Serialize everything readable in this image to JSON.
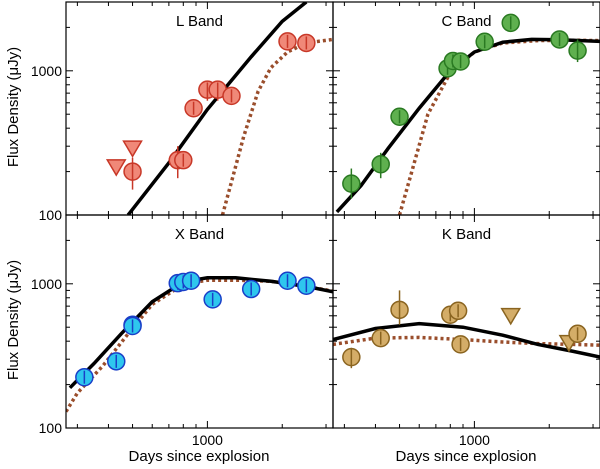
{
  "chart_data": {
    "type": "scatter",
    "xlabel": "Days since explosion",
    "ylabel": "Flux Density (μJy)",
    "xscale": "log",
    "yscale": "log",
    "xlim": [
      270,
      3200
    ],
    "x_ticks": [
      {
        "value": 1000,
        "label": "1000"
      }
    ],
    "colors": {
      "model_solid": "#000000",
      "model_dotted": "#9a4e2c"
    },
    "panels": [
      {
        "title": "L Band",
        "ylim": [
          100,
          3000
        ],
        "y_ticks": [
          {
            "value": 100,
            "label": "100"
          },
          {
            "value": 1000,
            "label": "1000"
          }
        ],
        "marker_fill": "#f08878",
        "marker_edge": "#c83828",
        "points": [
          {
            "x": 500,
            "y": 200,
            "err": [
              150,
              250
            ]
          },
          {
            "x": 760,
            "y": 240,
            "err": [
              180,
              300
            ]
          },
          {
            "x": 800,
            "y": 240
          },
          {
            "x": 880,
            "y": 550
          },
          {
            "x": 1000,
            "y": 740,
            "err": [
              620,
              830
            ]
          },
          {
            "x": 1100,
            "y": 740,
            "err": [
              620,
              830
            ]
          },
          {
            "x": 1250,
            "y": 670
          },
          {
            "x": 2100,
            "y": 1600
          },
          {
            "x": 2500,
            "y": 1560
          }
        ],
        "upper_limits": [
          {
            "x": 430,
            "y": 215
          },
          {
            "x": 500,
            "y": 290
          }
        ],
        "model_solid": [
          [
            480,
            100
          ],
          [
            700,
            230
          ],
          [
            1000,
            540
          ],
          [
            1500,
            1250
          ],
          [
            2000,
            2200
          ],
          [
            2500,
            3000
          ]
        ],
        "model_dotted": [
          [
            1150,
            100
          ],
          [
            1250,
            170
          ],
          [
            1400,
            350
          ],
          [
            1600,
            720
          ],
          [
            1800,
            1050
          ],
          [
            2100,
            1350
          ],
          [
            2500,
            1560
          ],
          [
            3200,
            1650
          ]
        ]
      },
      {
        "title": "C Band",
        "ylim": [
          100,
          3000
        ],
        "y_ticks": [],
        "marker_fill": "#5fb04f",
        "marker_edge": "#2a7a22",
        "points": [
          {
            "x": 320,
            "y": 165,
            "err": [
              130,
              210
            ]
          },
          {
            "x": 420,
            "y": 225,
            "err": [
              180,
              270
            ]
          },
          {
            "x": 500,
            "y": 480
          },
          {
            "x": 780,
            "y": 1040
          },
          {
            "x": 820,
            "y": 1170
          },
          {
            "x": 880,
            "y": 1160
          },
          {
            "x": 1100,
            "y": 1590
          },
          {
            "x": 1400,
            "y": 2150
          },
          {
            "x": 2200,
            "y": 1650
          },
          {
            "x": 2600,
            "y": 1380,
            "err": [
              1150,
              1650
            ]
          }
        ],
        "upper_limits": [],
        "model_solid": [
          [
            280,
            105
          ],
          [
            350,
            160
          ],
          [
            450,
            290
          ],
          [
            600,
            550
          ],
          [
            800,
            1000
          ],
          [
            1000,
            1350
          ],
          [
            1300,
            1580
          ],
          [
            1700,
            1650
          ],
          [
            2200,
            1640
          ],
          [
            3200,
            1600
          ]
        ],
        "model_dotted": [
          [
            500,
            100
          ],
          [
            560,
            200
          ],
          [
            650,
            500
          ],
          [
            800,
            970
          ],
          [
            1000,
            1350
          ],
          [
            1300,
            1560
          ],
          [
            1800,
            1620
          ],
          [
            2500,
            1630
          ],
          [
            3200,
            1620
          ]
        ]
      },
      {
        "title": "X Band",
        "ylim": [
          100,
          3000
        ],
        "y_ticks": [
          {
            "value": 100,
            "label": "100"
          },
          {
            "value": 1000,
            "label": "1000"
          }
        ],
        "marker_fill": "#2ec6ee",
        "marker_edge": "#1a3fc8",
        "points": [
          {
            "x": 320,
            "y": 225
          },
          {
            "x": 430,
            "y": 290
          },
          {
            "x": 500,
            "y": 520
          },
          {
            "x": 500,
            "y": 510
          },
          {
            "x": 760,
            "y": 1010
          },
          {
            "x": 800,
            "y": 1030
          },
          {
            "x": 860,
            "y": 1050
          },
          {
            "x": 1050,
            "y": 780
          },
          {
            "x": 1500,
            "y": 920
          },
          {
            "x": 2100,
            "y": 1050
          },
          {
            "x": 2500,
            "y": 970
          }
        ],
        "upper_limits": [],
        "model_solid": [
          [
            280,
            190
          ],
          [
            350,
            280
          ],
          [
            450,
            450
          ],
          [
            600,
            750
          ],
          [
            800,
            1030
          ],
          [
            1000,
            1100
          ],
          [
            1300,
            1100
          ],
          [
            1800,
            1040
          ],
          [
            2500,
            960
          ],
          [
            3200,
            880
          ]
        ],
        "model_dotted": [
          [
            270,
            130
          ],
          [
            300,
            175
          ],
          [
            380,
            270
          ],
          [
            480,
            450
          ],
          [
            600,
            720
          ],
          [
            800,
            990
          ],
          [
            1000,
            1060
          ],
          [
            1300,
            1060
          ],
          [
            1800,
            1040
          ],
          [
            2500,
            960
          ],
          [
            3200,
            890
          ]
        ]
      },
      {
        "title": "K Band",
        "ylim": [
          100,
          3000
        ],
        "y_ticks": [],
        "marker_fill": "#d4ad68",
        "marker_edge": "#8a6420",
        "points": [
          {
            "x": 320,
            "y": 310,
            "err": [
              260,
              360
            ]
          },
          {
            "x": 420,
            "y": 420
          },
          {
            "x": 500,
            "y": 660,
            "err": [
              520,
              900
            ]
          },
          {
            "x": 800,
            "y": 610
          },
          {
            "x": 860,
            "y": 650
          },
          {
            "x": 880,
            "y": 380
          },
          {
            "x": 2600,
            "y": 450
          }
        ],
        "upper_limits": [
          {
            "x": 1400,
            "y": 600
          },
          {
            "x": 2400,
            "y": 390
          }
        ],
        "model_solid": [
          [
            270,
            410
          ],
          [
            400,
            490
          ],
          [
            600,
            530
          ],
          [
            900,
            500
          ],
          [
            1300,
            440
          ],
          [
            1800,
            380
          ],
          [
            2500,
            340
          ],
          [
            3200,
            310
          ]
        ],
        "model_dotted": [
          [
            270,
            380
          ],
          [
            400,
            420
          ],
          [
            600,
            425
          ],
          [
            900,
            410
          ],
          [
            1300,
            395
          ],
          [
            1800,
            385
          ],
          [
            2500,
            380
          ],
          [
            3200,
            375
          ]
        ]
      }
    ]
  }
}
